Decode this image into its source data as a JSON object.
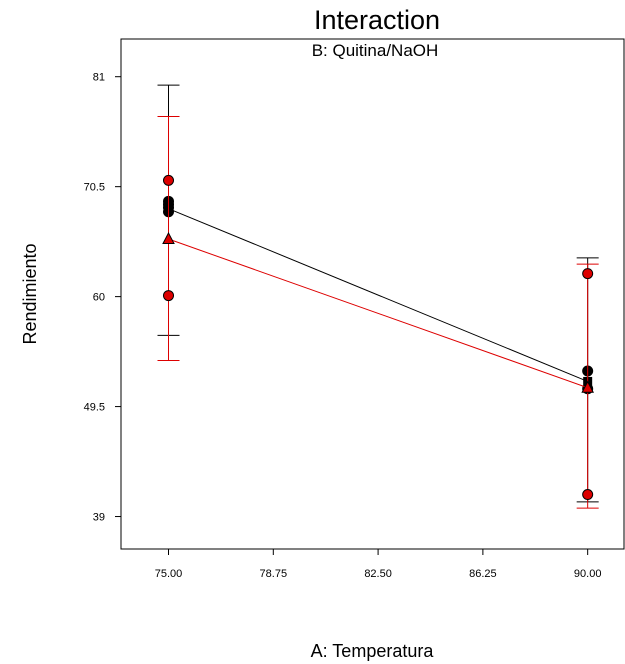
{
  "chart_data": {
    "type": "line",
    "title": "Interaction",
    "subtitle": "B: Quitina/NaOH",
    "xlabel": "A: Temperatura",
    "ylabel": "Rendimiento",
    "xlim": [
      73.3,
      91.3
    ],
    "ylim": [
      35.9,
      84.6
    ],
    "x_ticks": [
      75.0,
      78.75,
      82.5,
      86.25,
      90.0
    ],
    "x_tick_labels": [
      "75.00",
      "78.75",
      "82.50",
      "86.25",
      "90.00"
    ],
    "y_ticks": [
      39,
      49.5,
      60,
      70.5,
      81
    ],
    "y_tick_labels": [
      "39",
      "49.5",
      "60",
      "70.5",
      "81"
    ],
    "grid": false,
    "series": [
      {
        "color": "#000000",
        "marker": "square",
        "line": [
          {
            "x": 75,
            "y": 68.4
          },
          {
            "x": 90,
            "y": 51.9
          }
        ],
        "error_bars": [
          {
            "x": 75,
            "low": 56.3,
            "high": 80.2
          },
          {
            "x": 90,
            "low": 40.4,
            "high": 63.7
          }
        ],
        "points": [
          {
            "x": 75,
            "y": 69.1
          },
          {
            "x": 75,
            "y": 68.8
          },
          {
            "x": 75,
            "y": 68.5
          },
          {
            "x": 75,
            "y": 68.1
          },
          {
            "x": 90,
            "y": 52.9
          },
          {
            "x": 90,
            "y": 51.2
          }
        ]
      },
      {
        "color": "#dd0000",
        "marker": "triangle",
        "line": [
          {
            "x": 75,
            "y": 65.5
          },
          {
            "x": 90,
            "y": 51.3
          }
        ],
        "error_bars": [
          {
            "x": 75,
            "low": 53.9,
            "high": 77.2
          },
          {
            "x": 90,
            "low": 39.8,
            "high": 63.1
          }
        ],
        "points": [
          {
            "x": 75,
            "y": 71.1
          },
          {
            "x": 75,
            "y": 60.1
          },
          {
            "x": 90,
            "y": 62.2
          },
          {
            "x": 90,
            "y": 41.1
          }
        ]
      }
    ]
  }
}
